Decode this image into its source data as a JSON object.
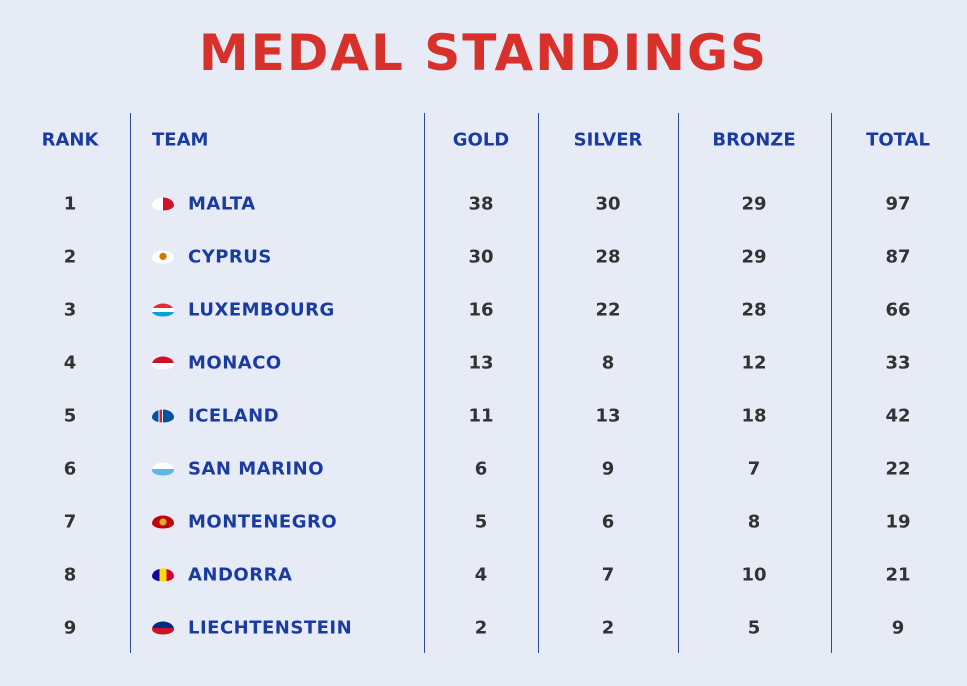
{
  "header": {
    "title": "MEDAL STANDINGS"
  },
  "table": {
    "columns": [
      "RANK",
      "TEAM",
      "GOLD",
      "SILVER",
      "BRONZE",
      "TOTAL"
    ],
    "rows": [
      [
        1,
        "MALTA",
        38,
        30,
        29,
        97
      ],
      [
        2,
        "CYPRUS",
        30,
        28,
        29,
        87
      ],
      [
        3,
        "LUXEMBOURG",
        16,
        22,
        28,
        66
      ],
      [
        4,
        "MONACO",
        13,
        8,
        12,
        33
      ],
      [
        5,
        "ICELAND",
        11,
        13,
        18,
        42
      ],
      [
        6,
        "SAN MARINO",
        6,
        9,
        7,
        22
      ],
      [
        7,
        "MONTENEGRO",
        5,
        6,
        8,
        19
      ],
      [
        8,
        "ANDORRA",
        4,
        7,
        10,
        21
      ],
      [
        9,
        "LIECHTENSTEIN",
        2,
        2,
        5,
        9
      ]
    ]
  }
}
